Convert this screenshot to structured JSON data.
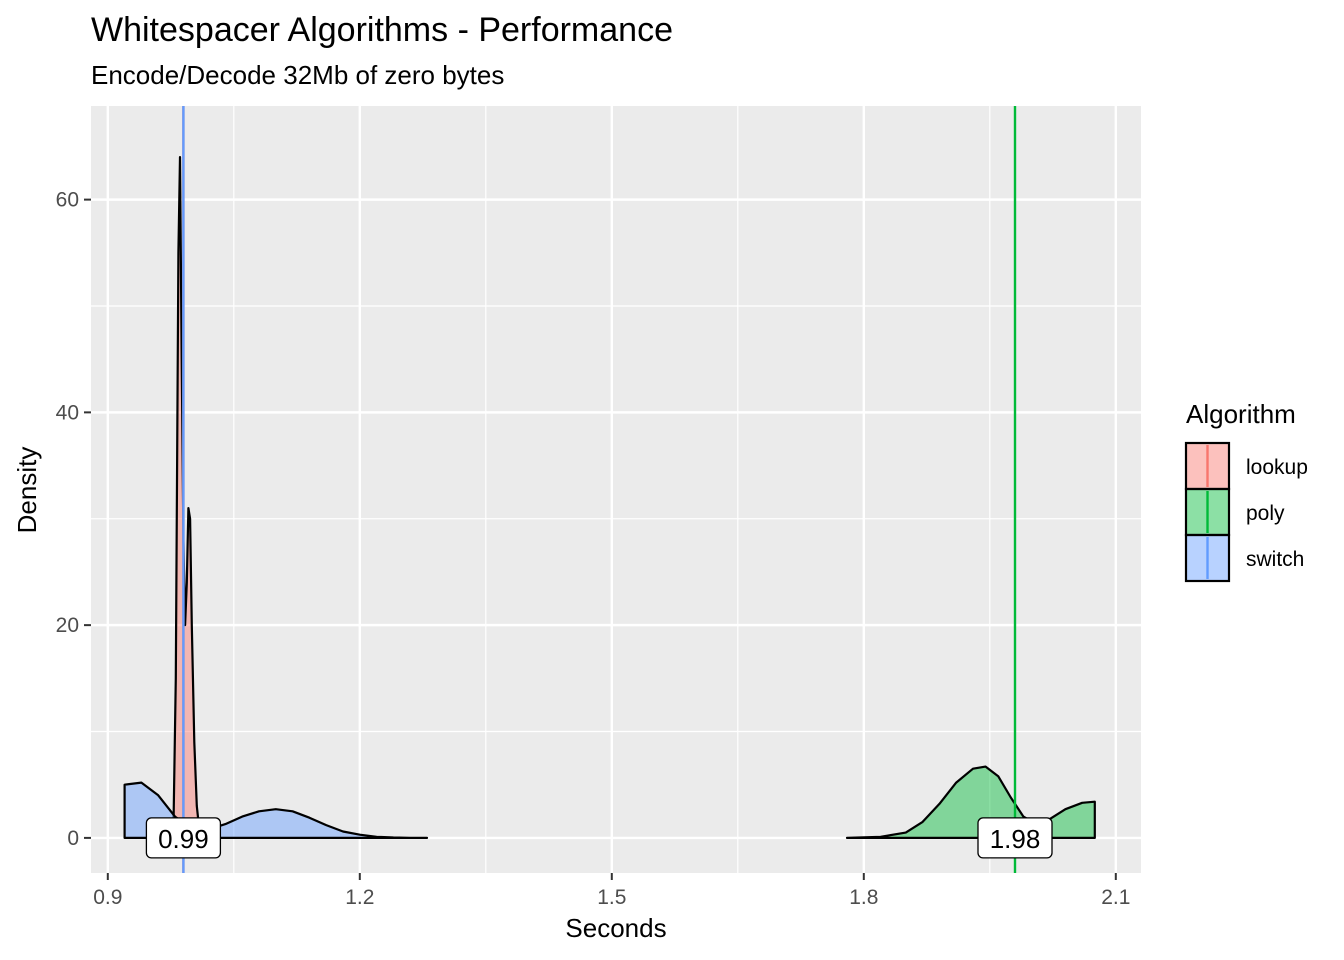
{
  "chart_data": {
    "type": "area",
    "title": "Whitespacer Algorithms - Performance",
    "subtitle": "Encode/Decode 32Mb of zero bytes",
    "xlabel": "Seconds",
    "ylabel": "Density",
    "xlim": [
      0.88,
      2.13
    ],
    "ylim": [
      -3.3,
      68.8
    ],
    "x_ticks": [
      0.9,
      1.2,
      1.5,
      1.8,
      2.1
    ],
    "x_tick_labels": [
      "0.9",
      "1.2",
      "1.5",
      "1.8",
      "2.1"
    ],
    "y_ticks": [
      0,
      20,
      40,
      60
    ],
    "y_tick_labels": [
      "0",
      "20",
      "40",
      "60"
    ],
    "grid": true,
    "legend": {
      "title": "Algorithm",
      "position": "right"
    },
    "series": [
      {
        "name": "lookup",
        "color": "#F8766D",
        "fill_opacity": 0.45,
        "x": [
          0.978,
          0.981,
          0.984,
          0.986,
          0.988,
          0.99,
          0.992,
          0.994,
          0.996,
          0.998,
          1.0,
          1.003,
          1.006,
          1.01
        ],
        "y": [
          0,
          15,
          55,
          64,
          45,
          28,
          20,
          24,
          31,
          30,
          20,
          9,
          3,
          0
        ]
      },
      {
        "name": "poly",
        "color": "#00BA38",
        "fill_opacity": 0.45,
        "x": [
          1.78,
          1.82,
          1.85,
          1.87,
          1.89,
          1.91,
          1.93,
          1.945,
          1.96,
          1.975,
          1.99,
          2.005,
          2.02,
          2.04,
          2.06,
          2.075
        ],
        "y": [
          0,
          0.1,
          0.5,
          1.5,
          3.2,
          5.2,
          6.5,
          6.7,
          5.8,
          3.8,
          2.0,
          1.3,
          1.7,
          2.7,
          3.3,
          3.4
        ]
      },
      {
        "name": "switch",
        "color": "#619CFF",
        "fill_opacity": 0.45,
        "x": [
          0.92,
          0.94,
          0.96,
          0.98,
          1.0,
          1.02,
          1.04,
          1.06,
          1.08,
          1.1,
          1.12,
          1.14,
          1.16,
          1.18,
          1.2,
          1.22,
          1.24,
          1.26,
          1.28
        ],
        "y": [
          5.0,
          5.2,
          4.0,
          2.0,
          0.9,
          0.8,
          1.3,
          2.0,
          2.5,
          2.7,
          2.5,
          1.9,
          1.2,
          0.6,
          0.3,
          0.1,
          0.04,
          0.01,
          0
        ]
      }
    ],
    "vlines": [
      {
        "series": "lookup",
        "x": 0.99
      },
      {
        "series": "switch",
        "x": 0.99
      },
      {
        "series": "poly",
        "x": 1.98
      }
    ],
    "annotations": [
      {
        "text": "0.99",
        "x": 0.99,
        "y": 0
      },
      {
        "text": "1.98",
        "x": 1.98,
        "y": 0
      }
    ]
  }
}
